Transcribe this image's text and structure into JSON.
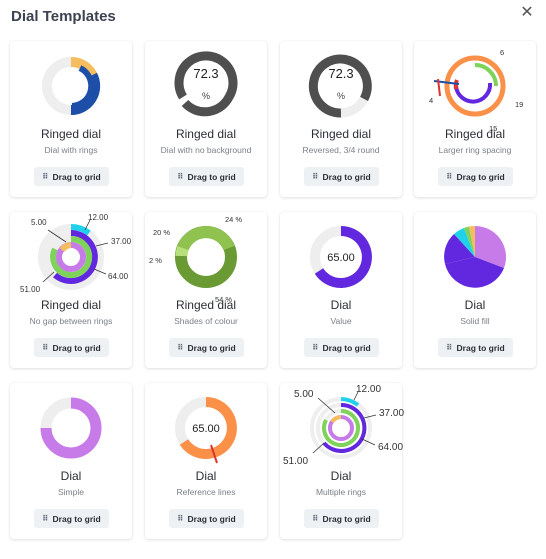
{
  "dialog": {
    "title": "Dial Templates",
    "close_icon": "close-icon"
  },
  "drag_label": "Drag to grid",
  "cards": [
    {
      "title": "Ringed dial",
      "subtitle": "Dial with rings"
    },
    {
      "title": "Ringed dial",
      "subtitle": "Dial with no background",
      "value": "72.3",
      "unit": "%"
    },
    {
      "title": "Ringed dial",
      "subtitle": "Reversed, 3/4 round",
      "value": "72.3",
      "unit": "%"
    },
    {
      "title": "Ringed dial",
      "subtitle": "Larger ring spacing",
      "labels": [
        "6",
        "19",
        "4",
        "15"
      ]
    },
    {
      "title": "Ringed dial",
      "subtitle": "No gap between rings",
      "labels": [
        "12.00",
        "5.00",
        "37.00",
        "64.00",
        "51.00"
      ]
    },
    {
      "title": "Ringed dial",
      "subtitle": "Shades of colour",
      "labels": [
        "24 %",
        "20 %",
        "2 %",
        "54 %"
      ]
    },
    {
      "title": "Dial",
      "subtitle": "Value",
      "value": "65.00"
    },
    {
      "title": "Dial",
      "subtitle": "Solid fill"
    },
    {
      "title": "Dial",
      "subtitle": "Simple"
    },
    {
      "title": "Dial",
      "subtitle": "Reference lines",
      "value": "65.00"
    },
    {
      "title": "Dial",
      "subtitle": "Multiple rings",
      "labels": [
        "12.00",
        "5.00",
        "37.00",
        "64.00",
        "51.00"
      ]
    }
  ],
  "colors": {
    "blue": "#1d4fa8",
    "yellow": "#f5bd5e",
    "grey": "#4f4f4f",
    "track": "#eeeeee",
    "orange": "#fb9148",
    "purple": "#6228e0",
    "green": "#7fd25a",
    "red": "#e0332d",
    "cyan": "#1fd2ea",
    "lavender": "#c77be8",
    "darkgreen": "#6a9a34",
    "lightgreen": "#8fc24f",
    "lime": "#b8e07a"
  }
}
